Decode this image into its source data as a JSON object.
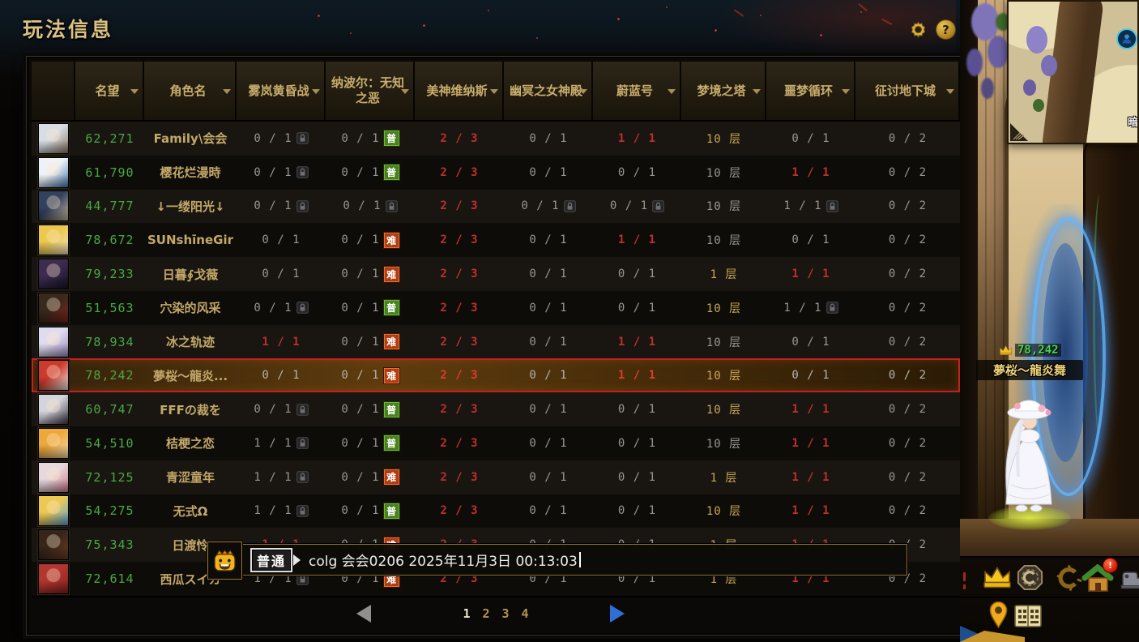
{
  "title": "玩法信息",
  "topbar": {
    "settings_icon": "gear-icon",
    "help_label": "?"
  },
  "table": {
    "columns": [
      {
        "label": "",
        "sortable": false
      },
      {
        "label": "名望",
        "sortable": true
      },
      {
        "label": "角色名",
        "sortable": true
      },
      {
        "label": "雾岚黄昏战",
        "sortable": true
      },
      {
        "label": "纳波尔：无知之恶",
        "sortable": true
      },
      {
        "label": "美神维纳斯",
        "sortable": true
      },
      {
        "label": "幽冥之女神殿",
        "sortable": true
      },
      {
        "label": "蔚蓝号",
        "sortable": true
      },
      {
        "label": "梦境之塔",
        "sortable": true
      },
      {
        "label": "噩梦循环",
        "sortable": true
      },
      {
        "label": "征讨地下城",
        "sortable": true
      }
    ],
    "difficulty_badges": {
      "normal": "普",
      "hard": "难"
    },
    "rows": [
      {
        "fame": "62,271",
        "name": "Family\\会会",
        "avatar_colors": [
          "#d8dde3",
          "#8a7a66"
        ],
        "selected": false,
        "cells": [
          {
            "text": "0 / 1",
            "state": "gray",
            "lock": true
          },
          {
            "text": "0 / 1",
            "state": "gray",
            "badge": "普"
          },
          {
            "text": "2 / 3",
            "state": "red"
          },
          {
            "text": "0 / 1",
            "state": "gray"
          },
          {
            "text": "1 / 1",
            "state": "red"
          },
          {
            "text": "10 层",
            "state": "gold"
          },
          {
            "text": "0 / 1",
            "state": "gray"
          },
          {
            "text": "0 / 2",
            "state": "gray"
          }
        ]
      },
      {
        "fame": "61,790",
        "name": "樱花烂漫時",
        "avatar_colors": [
          "#eef2f6",
          "#4a7ab0"
        ],
        "selected": false,
        "cells": [
          {
            "text": "0 / 1",
            "state": "gray",
            "lock": true
          },
          {
            "text": "0 / 1",
            "state": "gray",
            "badge": "普"
          },
          {
            "text": "2 / 3",
            "state": "red"
          },
          {
            "text": "0 / 1",
            "state": "gray"
          },
          {
            "text": "0 / 1",
            "state": "gray"
          },
          {
            "text": "10 层",
            "state": "gray"
          },
          {
            "text": "1 / 1",
            "state": "red"
          },
          {
            "text": "0 / 2",
            "state": "gray"
          }
        ]
      },
      {
        "fame": "44,777",
        "name": "↓一缕阳光↓",
        "avatar_colors": [
          "#32415e",
          "#c8b8a0"
        ],
        "selected": false,
        "cells": [
          {
            "text": "0 / 1",
            "state": "gray",
            "lock": true
          },
          {
            "text": "0 / 1",
            "state": "gray",
            "lock": true
          },
          {
            "text": "2 / 3",
            "state": "red"
          },
          {
            "text": "0 / 1",
            "state": "gray",
            "lock": true
          },
          {
            "text": "0 / 1",
            "state": "gray",
            "lock": true
          },
          {
            "text": "10 层",
            "state": "gray"
          },
          {
            "text": "1 / 1",
            "state": "gray",
            "lock": true
          },
          {
            "text": "0 / 2",
            "state": "gray"
          }
        ]
      },
      {
        "fame": "78,672",
        "name": "SUNshīneGir",
        "avatar_colors": [
          "#ecc94e",
          "#f2e2c2"
        ],
        "selected": false,
        "cells": [
          {
            "text": "0 / 1",
            "state": "gray"
          },
          {
            "text": "0 / 1",
            "state": "gray",
            "badge": "难"
          },
          {
            "text": "2 / 3",
            "state": "red"
          },
          {
            "text": "0 / 1",
            "state": "gray"
          },
          {
            "text": "1 / 1",
            "state": "red"
          },
          {
            "text": "10 层",
            "state": "gray"
          },
          {
            "text": "0 / 1",
            "state": "gray"
          },
          {
            "text": "0 / 2",
            "state": "gray"
          }
        ]
      },
      {
        "fame": "79,233",
        "name": "日暮∮戈薇",
        "avatar_colors": [
          "#3c2c50",
          "#181226"
        ],
        "selected": false,
        "cells": [
          {
            "text": "0 / 1",
            "state": "gray"
          },
          {
            "text": "0 / 1",
            "state": "gray",
            "badge": "难"
          },
          {
            "text": "2 / 3",
            "state": "red"
          },
          {
            "text": "0 / 1",
            "state": "gray"
          },
          {
            "text": "0 / 1",
            "state": "gray"
          },
          {
            "text": "1 层",
            "state": "gold"
          },
          {
            "text": "1 / 1",
            "state": "red"
          },
          {
            "text": "0 / 2",
            "state": "gray"
          }
        ]
      },
      {
        "fame": "51,563",
        "name": "穴染的风采",
        "avatar_colors": [
          "#38291c",
          "#7e241a"
        ],
        "selected": false,
        "cells": [
          {
            "text": "0 / 1",
            "state": "gray",
            "lock": true
          },
          {
            "text": "0 / 1",
            "state": "gray",
            "badge": "普"
          },
          {
            "text": "2 / 3",
            "state": "red"
          },
          {
            "text": "0 / 1",
            "state": "gray"
          },
          {
            "text": "0 / 1",
            "state": "gray"
          },
          {
            "text": "10 层",
            "state": "gold"
          },
          {
            "text": "1 / 1",
            "state": "gray",
            "lock": true
          },
          {
            "text": "0 / 2",
            "state": "gray"
          }
        ]
      },
      {
        "fame": "78,934",
        "name": "冰之轨迹",
        "avatar_colors": [
          "#e0dcf0",
          "#9a8ac0"
        ],
        "selected": false,
        "cells": [
          {
            "text": "1 / 1",
            "state": "red"
          },
          {
            "text": "0 / 1",
            "state": "gray",
            "badge": "难"
          },
          {
            "text": "2 / 3",
            "state": "red"
          },
          {
            "text": "0 / 1",
            "state": "gray"
          },
          {
            "text": "1 / 1",
            "state": "red"
          },
          {
            "text": "10 层",
            "state": "gray"
          },
          {
            "text": "0 / 1",
            "state": "gray"
          },
          {
            "text": "0 / 2",
            "state": "gray"
          }
        ]
      },
      {
        "fame": "78,242",
        "name": "夢桜～龍炎...",
        "avatar_colors": [
          "#cc3a2e",
          "#ece8de"
        ],
        "selected": true,
        "cells": [
          {
            "text": "0 / 1",
            "state": "gray"
          },
          {
            "text": "0 / 1",
            "state": "gray",
            "badge": "难"
          },
          {
            "text": "2 / 3",
            "state": "red"
          },
          {
            "text": "0 / 1",
            "state": "gray"
          },
          {
            "text": "1 / 1",
            "state": "red"
          },
          {
            "text": "10 层",
            "state": "gold"
          },
          {
            "text": "0 / 1",
            "state": "gray"
          },
          {
            "text": "0 / 2",
            "state": "gray"
          }
        ]
      },
      {
        "fame": "60,747",
        "name": "FFFの裁を",
        "avatar_colors": [
          "#d4d4dc",
          "#40394a"
        ],
        "selected": false,
        "cells": [
          {
            "text": "0 / 1",
            "state": "gray",
            "lock": true
          },
          {
            "text": "0 / 1",
            "state": "gray",
            "badge": "普"
          },
          {
            "text": "2 / 3",
            "state": "red"
          },
          {
            "text": "0 / 1",
            "state": "gray"
          },
          {
            "text": "0 / 1",
            "state": "gray"
          },
          {
            "text": "10 层",
            "state": "gold"
          },
          {
            "text": "1 / 1",
            "state": "red"
          },
          {
            "text": "0 / 2",
            "state": "gray"
          }
        ]
      },
      {
        "fame": "54,510",
        "name": "桔梗之恋",
        "avatar_colors": [
          "#eca838",
          "#f4dcae"
        ],
        "selected": false,
        "cells": [
          {
            "text": "1 / 1",
            "state": "gray",
            "lock": true
          },
          {
            "text": "0 / 1",
            "state": "gray",
            "badge": "普"
          },
          {
            "text": "2 / 3",
            "state": "red"
          },
          {
            "text": "0 / 1",
            "state": "gray"
          },
          {
            "text": "0 / 1",
            "state": "gray"
          },
          {
            "text": "10 层",
            "state": "gray"
          },
          {
            "text": "1 / 1",
            "state": "red"
          },
          {
            "text": "0 / 2",
            "state": "gray"
          }
        ]
      },
      {
        "fame": "72,125",
        "name": "青涩童年",
        "avatar_colors": [
          "#e6d8dc",
          "#cc7e8e"
        ],
        "selected": false,
        "cells": [
          {
            "text": "1 / 1",
            "state": "gray",
            "lock": true
          },
          {
            "text": "0 / 1",
            "state": "gray",
            "badge": "难"
          },
          {
            "text": "2 / 3",
            "state": "red"
          },
          {
            "text": "0 / 1",
            "state": "gray"
          },
          {
            "text": "0 / 1",
            "state": "gray"
          },
          {
            "text": "1 层",
            "state": "gold"
          },
          {
            "text": "1 / 1",
            "state": "red"
          },
          {
            "text": "0 / 2",
            "state": "gray"
          }
        ]
      },
      {
        "fame": "54,275",
        "name": "无式Ω",
        "avatar_colors": [
          "#ecc952",
          "#5aa2da"
        ],
        "selected": false,
        "cells": [
          {
            "text": "1 / 1",
            "state": "gray",
            "lock": true
          },
          {
            "text": "0 / 1",
            "state": "gray",
            "badge": "普"
          },
          {
            "text": "2 / 3",
            "state": "red"
          },
          {
            "text": "0 / 1",
            "state": "gray"
          },
          {
            "text": "0 / 1",
            "state": "gray"
          },
          {
            "text": "10 层",
            "state": "gold"
          },
          {
            "text": "1 / 1",
            "state": "red"
          },
          {
            "text": "0 / 2",
            "state": "gray"
          }
        ]
      },
      {
        "fame": "75,343",
        "name": "日渡怜",
        "avatar_colors": [
          "#36261a",
          "#6e3c22"
        ],
        "selected": false,
        "cells": [
          {
            "text": "1 / 1",
            "state": "red"
          },
          {
            "text": "0 / 1",
            "state": "gray",
            "badge": "难"
          },
          {
            "text": "2 / 3",
            "state": "red"
          },
          {
            "text": "0 / 1",
            "state": "gray"
          },
          {
            "text": "0 / 1",
            "state": "gray"
          },
          {
            "text": "1 层",
            "state": "gold"
          },
          {
            "text": "1 / 1",
            "state": "red"
          },
          {
            "text": "0 / 2",
            "state": "gray"
          }
        ]
      },
      {
        "fame": "72,614",
        "name": "西瓜スイカ",
        "avatar_colors": [
          "#b43630",
          "#84221e"
        ],
        "selected": false,
        "cells": [
          {
            "text": "1 / 1",
            "state": "gray",
            "lock": true
          },
          {
            "text": "0 / 1",
            "state": "gray",
            "badge": "难"
          },
          {
            "text": "2 / 3",
            "state": "red"
          },
          {
            "text": "0 / 1",
            "state": "gray"
          },
          {
            "text": "0 / 1",
            "state": "gray"
          },
          {
            "text": "1 层",
            "state": "gold"
          },
          {
            "text": "1 / 1",
            "state": "red"
          },
          {
            "text": "0 / 2",
            "state": "gray"
          }
        ]
      }
    ]
  },
  "pagination": {
    "pages": [
      "1",
      "2",
      "3",
      "4"
    ],
    "current_page": "1",
    "prev_enabled": false,
    "next_enabled": true
  },
  "chat_message": {
    "emote": "smiley-emote-icon",
    "channel_badge": "普通",
    "text": "colg 会会0206 2025年11月3日 00:13:03"
  },
  "game_scene": {
    "minimap": {
      "map_label": "暗烟",
      "player_marker": "player-marker-icon"
    },
    "character": {
      "fame": "78,242",
      "name": "夢桜～龍炎舞"
    },
    "dock": {
      "home_alert": "!",
      "icons": [
        "crown-icon",
        "guild-emblem-icon",
        "gold-c-icon",
        "home-icon",
        "crafting-machine-icon",
        "location-pin-icon",
        "grid-book-icon"
      ]
    }
  },
  "colors": {
    "gold_text": "#c9ad6c",
    "fame_green": "#49a843",
    "value_gray": "#989693",
    "value_red": "#bf2f2f",
    "value_gold": "#c8a855",
    "badge_normal_bg": "#47821c",
    "badge_hard_bg": "#b33b10",
    "selected_border": "#c42020",
    "next_arrow_blue": "#2e6fd6",
    "scene_fame_green": "#43d84b"
  }
}
